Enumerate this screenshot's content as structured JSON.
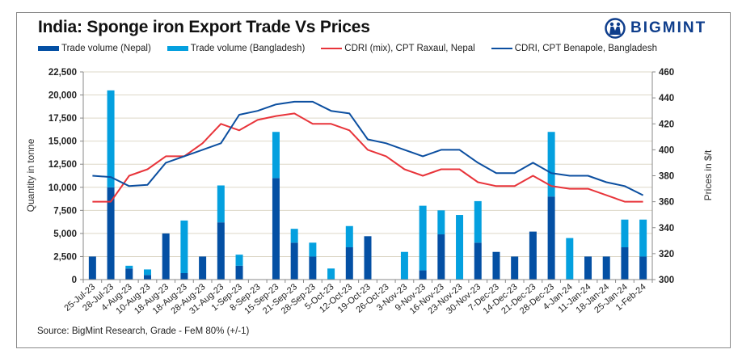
{
  "title": "India: Sponge iron Export Trade Vs Prices",
  "brand": "BIGMINT",
  "source": "Source: BigMint Research, Grade - FeM 80% (+/-1)",
  "colors": {
    "nepal_bar": "#0450a4",
    "bangladesh_bar": "#04a0df",
    "raxaul_line": "#e8343a",
    "benapole_line": "#0c4fa0",
    "grid": "#ddd8c8"
  },
  "chart_data": {
    "type": "bar",
    "title": "India: Sponge iron Export Trade Vs Prices",
    "xlabel": "",
    "ylabel": "Quantity in tonne",
    "y2label": "Prices in $/t",
    "ylim": [
      0,
      22500
    ],
    "y2lim": [
      300,
      460
    ],
    "yticks": [
      "0",
      "2,500",
      "5,000",
      "7,500",
      "10,000",
      "12,500",
      "15,000",
      "17,500",
      "20,000",
      "22,500"
    ],
    "y2ticks": [
      "300",
      "320",
      "340",
      "360",
      "380",
      "400",
      "420",
      "440",
      "460"
    ],
    "grid": true,
    "legend_position": "top",
    "categories": [
      "25-Jul-23",
      "28-Jul-23",
      "4-Aug-23",
      "10-Aug-23",
      "18-Aug-23",
      "18-Aug-23",
      "28-Aug-23",
      "31-Aug-23",
      "1-Sep-23",
      "8-Sep-23",
      "15-Sep-23",
      "21-Sep-23",
      "28-Sep-23",
      "5-Oct-23",
      "12-Oct-23",
      "19-Oct-23",
      "26-Oct-23",
      "3-Nov-23",
      "9-Nov-23",
      "16-Nov-23",
      "23-Nov-23",
      "30-Nov-23",
      "7-Dec-23",
      "14-Dec-23",
      "21-Dec-23",
      "28-Dec-23",
      "4-Jan-24",
      "11-Jan-24",
      "18-Jan-24",
      "25-Jan-24",
      "1-Feb-24"
    ],
    "series": [
      {
        "name": "Trade volume (Nepal)",
        "type": "bar",
        "stack": "vol",
        "axis": "left",
        "values": [
          2500,
          10000,
          1200,
          500,
          5000,
          700,
          2500,
          6200,
          1500,
          0,
          11000,
          4000,
          2500,
          0,
          3500,
          4700,
          0,
          0,
          1000,
          4900,
          0,
          4000,
          3000,
          2500,
          5200,
          9000,
          0,
          2500,
          2500,
          3500,
          2500
        ]
      },
      {
        "name": "Trade volume (Bangladesh)",
        "type": "bar",
        "stack": "vol",
        "axis": "left",
        "values": [
          0,
          10500,
          300,
          600,
          0,
          5700,
          0,
          4000,
          1200,
          0,
          5000,
          1500,
          1500,
          1200,
          2300,
          0,
          0,
          3000,
          7000,
          2600,
          7000,
          4500,
          0,
          0,
          0,
          7000,
          4500,
          0,
          0,
          3000,
          4000
        ]
      },
      {
        "name": "CDRI (mix), CPT Raxaul, Nepal",
        "type": "line",
        "axis": "right",
        "values": [
          360,
          360,
          380,
          385,
          395,
          395,
          405,
          420,
          415,
          423,
          426,
          428,
          420,
          420,
          415,
          400,
          395,
          385,
          380,
          385,
          385,
          375,
          372,
          372,
          380,
          372,
          370,
          370,
          365,
          360,
          360
        ]
      },
      {
        "name": "CDRI, CPT Benapole, Bangladesh",
        "type": "line",
        "axis": "right",
        "values": [
          380,
          379,
          372,
          373,
          390,
          395,
          400,
          405,
          427,
          430,
          435,
          437,
          437,
          430,
          428,
          408,
          405,
          400,
          395,
          400,
          400,
          390,
          382,
          382,
          390,
          382,
          380,
          380,
          375,
          372,
          365
        ]
      }
    ]
  }
}
